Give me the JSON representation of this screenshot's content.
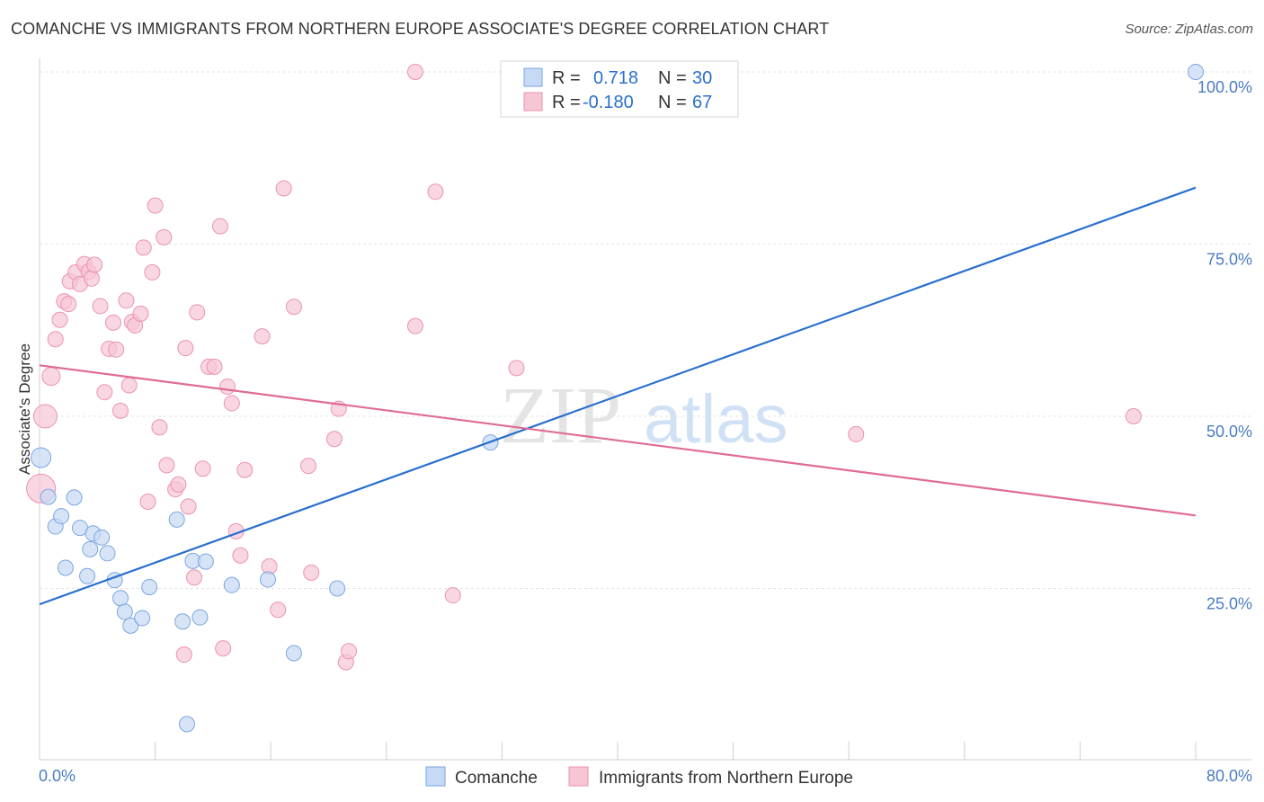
{
  "title": "COMANCHE VS IMMIGRANTS FROM NORTHERN EUROPE ASSOCIATE'S DEGREE CORRELATION CHART",
  "source": "Source: ZipAtlas.com",
  "watermark": {
    "zip": "ZIP",
    "atlas": "atlas"
  },
  "colors": {
    "blue_fill": "#c6d9f5",
    "blue_stroke": "#7aa6e0",
    "blue_line": "#2a6fcf",
    "pink_fill": "#f7c6d5",
    "pink_stroke": "#eb93ad",
    "pink_line": "#e06b95",
    "axis_text": "#4a7cc4"
  },
  "legend": {
    "r_label": "R =",
    "n_label": "N =",
    "rows": [
      {
        "series": "Comanche",
        "r": "0.718",
        "n": "30"
      },
      {
        "series": "Immigrants from Northern Europe",
        "r": "-0.180",
        "n": "67"
      }
    ]
  },
  "chart_data": {
    "type": "scatter",
    "title": "COMANCHE VS IMMIGRANTS FROM NORTHERN EUROPE ASSOCIATE'S DEGREE CORRELATION CHART",
    "xlabel": "",
    "ylabel": "Associate's Degree",
    "xlim": [
      0,
      80
    ],
    "ylim": [
      0,
      102
    ],
    "x_tick_labels": [
      "0.0%",
      "80.0%"
    ],
    "y_ticks": [
      25,
      50,
      75,
      100
    ],
    "y_tick_labels": [
      "25.0%",
      "50.0%",
      "75.0%",
      "100.0%"
    ],
    "grid": true,
    "series": [
      {
        "name": "Comanche",
        "color": "#7aa6e0",
        "points": [
          [
            0.1,
            44.0
          ],
          [
            0.6,
            38.3
          ],
          [
            1.1,
            34.0
          ],
          [
            1.5,
            35.5
          ],
          [
            1.8,
            28.0
          ],
          [
            2.4,
            38.2
          ],
          [
            2.8,
            33.8
          ],
          [
            3.3,
            26.8
          ],
          [
            3.5,
            30.7
          ],
          [
            3.7,
            33.0
          ],
          [
            4.3,
            32.4
          ],
          [
            4.7,
            30.1
          ],
          [
            5.2,
            26.2
          ],
          [
            5.6,
            23.6
          ],
          [
            5.9,
            21.6
          ],
          [
            6.3,
            19.6
          ],
          [
            7.1,
            20.7
          ],
          [
            7.6,
            25.2
          ],
          [
            9.5,
            35.0
          ],
          [
            9.9,
            20.2
          ],
          [
            10.2,
            5.3
          ],
          [
            10.6,
            29.0
          ],
          [
            11.1,
            20.8
          ],
          [
            11.5,
            28.9
          ],
          [
            13.3,
            25.5
          ],
          [
            15.8,
            26.3
          ],
          [
            17.6,
            15.6
          ],
          [
            20.6,
            25.0
          ],
          [
            31.2,
            46.2
          ],
          [
            80.0,
            100.0
          ]
        ]
      },
      {
        "name": "Immigrants from Northern Europe",
        "color": "#eb93ad",
        "points": [
          [
            0.1,
            39.5
          ],
          [
            0.4,
            50.0
          ],
          [
            0.8,
            55.8
          ],
          [
            1.1,
            61.2
          ],
          [
            1.4,
            64.0
          ],
          [
            1.7,
            66.7
          ],
          [
            2.0,
            66.3
          ],
          [
            2.1,
            69.6
          ],
          [
            2.5,
            70.9
          ],
          [
            2.8,
            69.2
          ],
          [
            3.1,
            72.1
          ],
          [
            3.4,
            71.0
          ],
          [
            3.6,
            70.0
          ],
          [
            3.8,
            72.0
          ],
          [
            4.2,
            66.0
          ],
          [
            4.5,
            53.5
          ],
          [
            4.8,
            59.8
          ],
          [
            5.1,
            63.6
          ],
          [
            5.3,
            59.7
          ],
          [
            5.6,
            50.8
          ],
          [
            6.0,
            66.8
          ],
          [
            6.2,
            54.5
          ],
          [
            6.4,
            63.7
          ],
          [
            6.6,
            63.2
          ],
          [
            7.0,
            64.9
          ],
          [
            7.2,
            74.5
          ],
          [
            7.5,
            37.6
          ],
          [
            7.8,
            70.9
          ],
          [
            8.0,
            80.6
          ],
          [
            8.3,
            48.4
          ],
          [
            8.6,
            76.0
          ],
          [
            8.8,
            42.9
          ],
          [
            9.4,
            39.4
          ],
          [
            9.6,
            40.1
          ],
          [
            10.0,
            15.4
          ],
          [
            10.1,
            59.9
          ],
          [
            10.3,
            36.9
          ],
          [
            10.7,
            26.6
          ],
          [
            10.9,
            65.1
          ],
          [
            11.3,
            42.4
          ],
          [
            11.7,
            57.2
          ],
          [
            12.1,
            57.2
          ],
          [
            12.5,
            77.6
          ],
          [
            12.7,
            16.3
          ],
          [
            13.0,
            54.3
          ],
          [
            13.3,
            51.9
          ],
          [
            13.6,
            33.3
          ],
          [
            13.9,
            29.8
          ],
          [
            14.2,
            42.2
          ],
          [
            15.4,
            61.6
          ],
          [
            15.9,
            28.2
          ],
          [
            16.5,
            21.9
          ],
          [
            16.9,
            83.1
          ],
          [
            17.6,
            65.9
          ],
          [
            18.6,
            42.8
          ],
          [
            18.8,
            27.3
          ],
          [
            20.4,
            46.7
          ],
          [
            20.7,
            51.1
          ],
          [
            21.2,
            14.3
          ],
          [
            21.4,
            15.9
          ],
          [
            26.0,
            100.0
          ],
          [
            26.0,
            63.1
          ],
          [
            27.4,
            82.6
          ],
          [
            28.6,
            24.0
          ],
          [
            33.0,
            57.0
          ],
          [
            56.5,
            47.4
          ],
          [
            75.7,
            50.0
          ]
        ]
      }
    ],
    "trend_lines": [
      {
        "series": "Comanche",
        "from": [
          0,
          22.7
        ],
        "to": [
          80,
          83.2
        ]
      },
      {
        "series": "Immigrants from Northern Europe",
        "from": [
          0,
          57.4
        ],
        "to": [
          80,
          35.6
        ]
      }
    ]
  },
  "bottom_legend": [
    {
      "label": "Comanche"
    },
    {
      "label": "Immigrants from Northern Europe"
    }
  ]
}
